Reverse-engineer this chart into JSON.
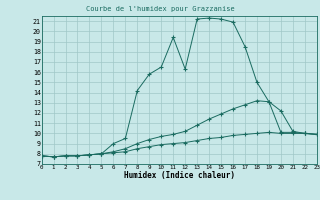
{
  "title": "Courbe de l'humidex pour Grazzanise",
  "xlabel": "Humidex (Indice chaleur)",
  "bg_color": "#c8e8e8",
  "line_color": "#1a6b60",
  "grid_color": "#a0c8c8",
  "xlim": [
    0,
    23
  ],
  "ylim": [
    7,
    21.5
  ],
  "xticks": [
    0,
    1,
    2,
    3,
    4,
    5,
    6,
    7,
    8,
    9,
    10,
    11,
    12,
    13,
    14,
    15,
    16,
    17,
    18,
    19,
    20,
    21,
    22,
    23
  ],
  "yticks": [
    7,
    8,
    9,
    10,
    11,
    12,
    13,
    14,
    15,
    16,
    17,
    18,
    19,
    20,
    21
  ],
  "series": [
    {
      "y": [
        7.8,
        7.7,
        7.8,
        7.8,
        7.9,
        8.0,
        9.0,
        9.5,
        14.2,
        15.8,
        16.5,
        19.4,
        16.3,
        21.2,
        21.3,
        21.2,
        20.9,
        18.5,
        15.0,
        13.1,
        12.2,
        10.2,
        10.0,
        9.9
      ]
    },
    {
      "y": [
        7.8,
        7.7,
        7.8,
        7.8,
        7.9,
        8.0,
        8.2,
        8.5,
        9.0,
        9.4,
        9.7,
        9.9,
        10.2,
        10.8,
        11.4,
        11.9,
        12.4,
        12.8,
        13.2,
        13.1,
        10.1,
        10.1,
        10.0,
        9.9
      ]
    },
    {
      "y": [
        7.8,
        7.7,
        7.8,
        7.8,
        7.9,
        8.0,
        8.1,
        8.2,
        8.5,
        8.7,
        8.9,
        9.0,
        9.1,
        9.3,
        9.5,
        9.6,
        9.8,
        9.9,
        10.0,
        10.1,
        10.0,
        10.0,
        10.0,
        9.9
      ]
    }
  ]
}
